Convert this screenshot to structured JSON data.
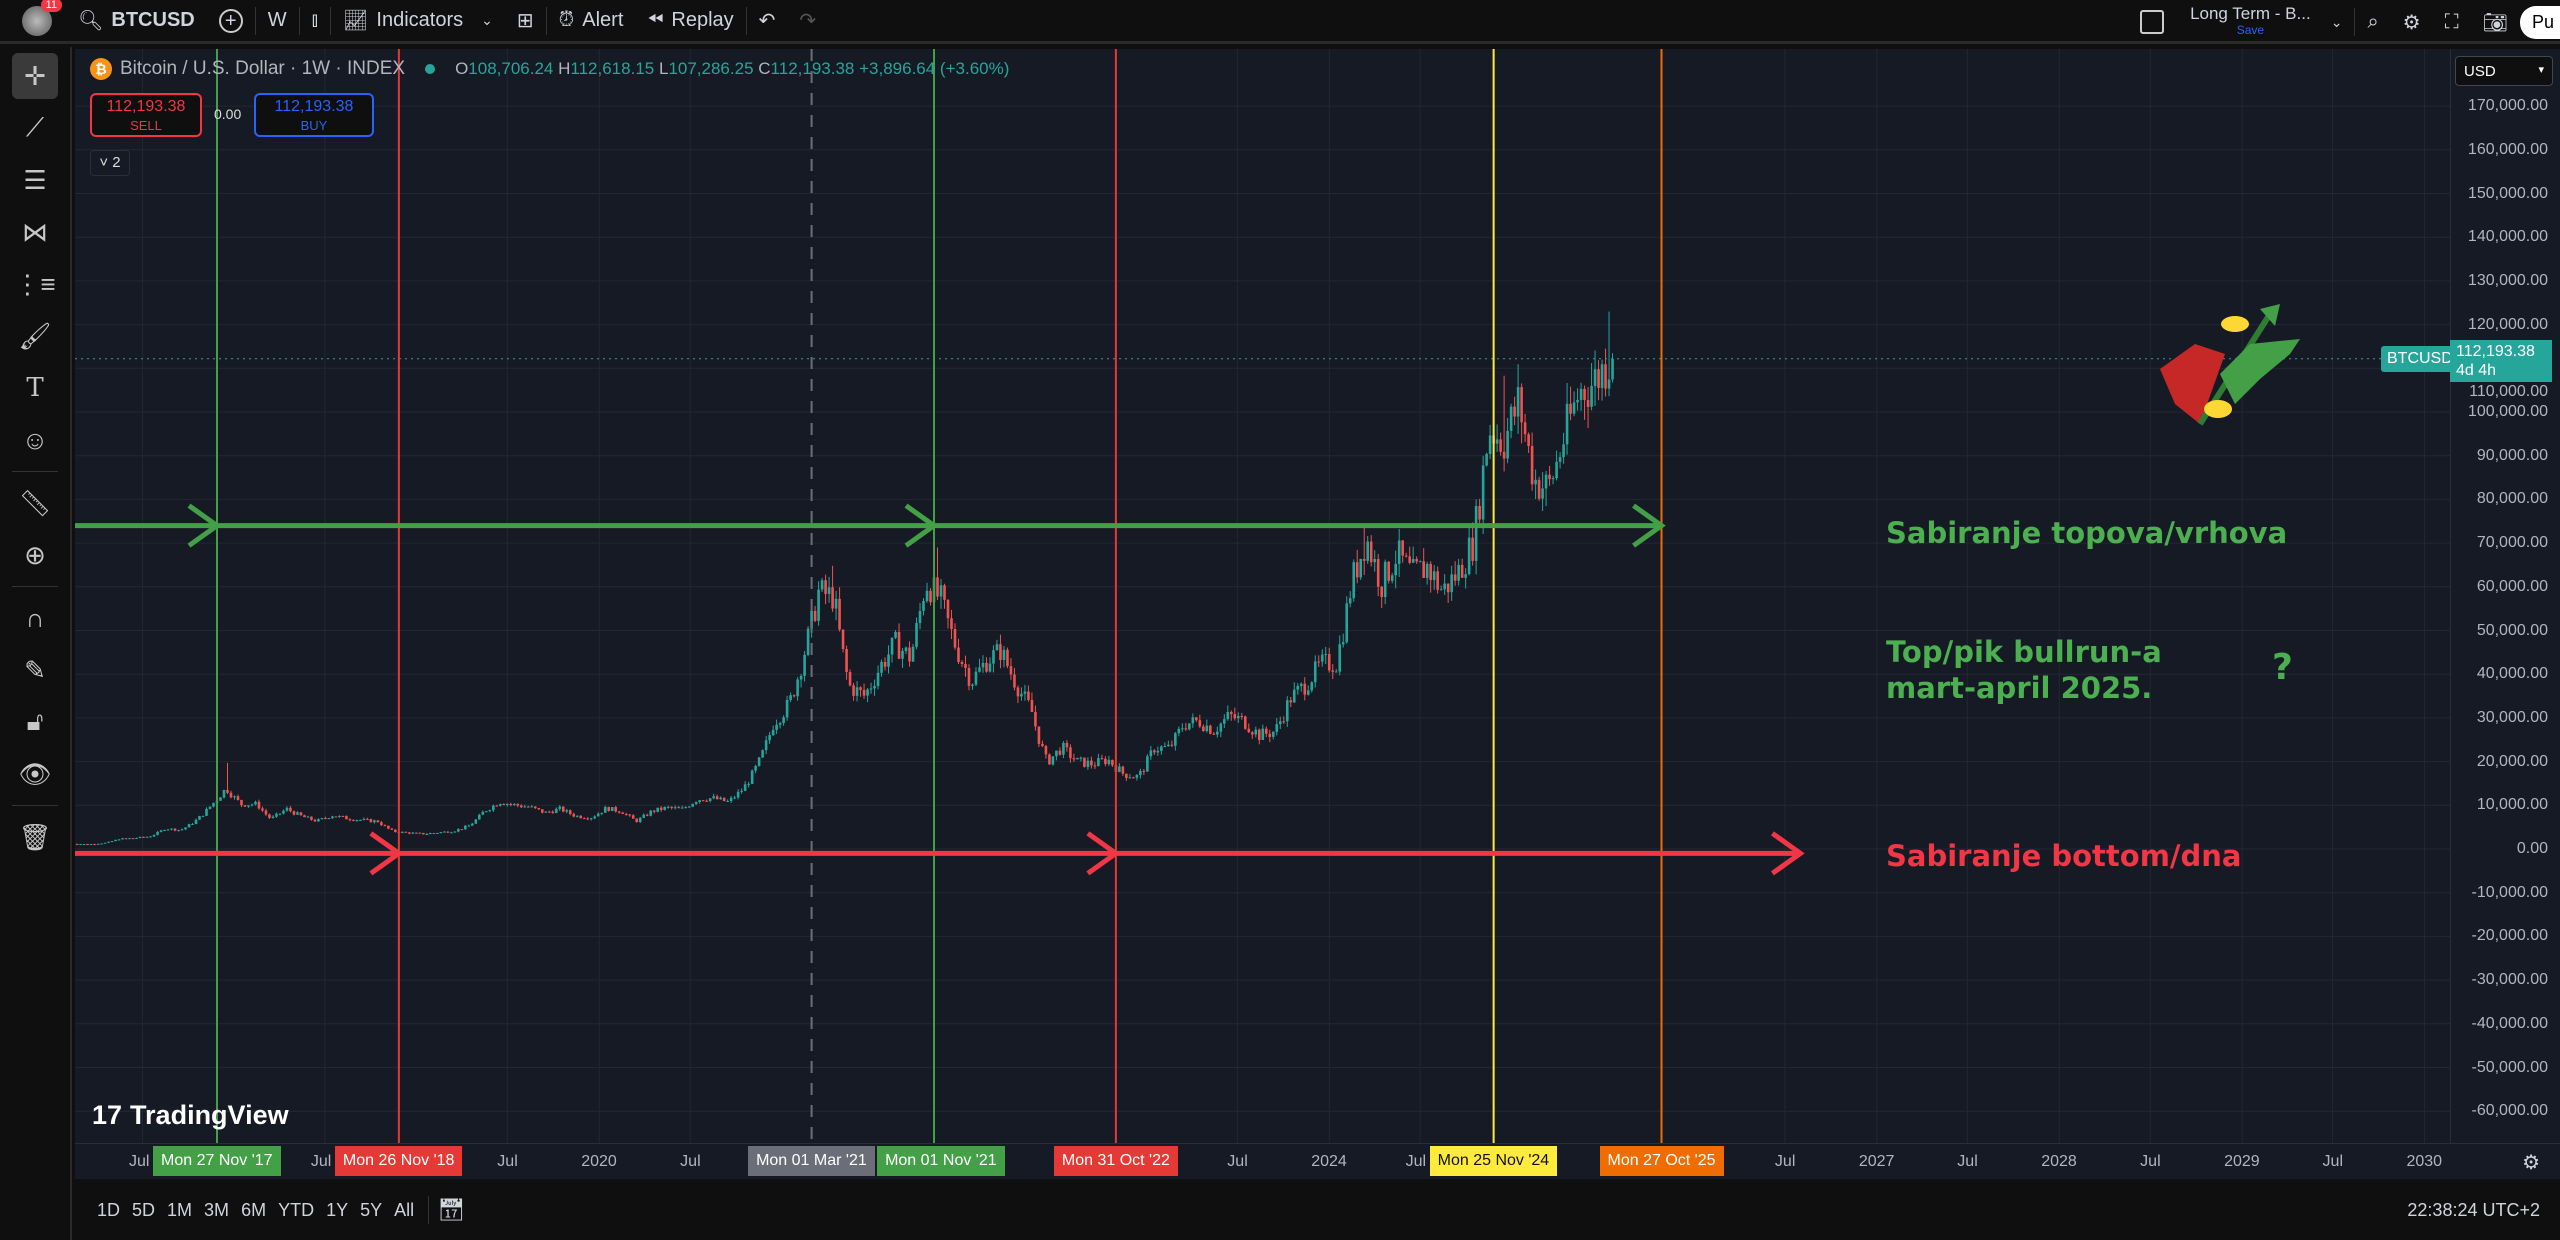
{
  "topbar": {
    "notifications": "11",
    "symbol": "BTCUSD",
    "interval": "W",
    "indicators": "Indicators",
    "alert": "Alert",
    "replay": "Replay",
    "layout_name": "Long Term - B...",
    "layout_save": "Save",
    "publish": "Pu"
  },
  "legend": {
    "title": "Bitcoin / U.S. Dollar · 1W · INDEX",
    "o_label": "O",
    "o": "108,706.24",
    "h_label": "H",
    "h": "112,618.15",
    "l_label": "L",
    "l": "107,286.25",
    "c_label": "C",
    "c": "112,193.38",
    "change": "+3,896.64 (+3.60%)"
  },
  "trade": {
    "sell_price": "112,193.38",
    "sell_label": "SELL",
    "spread": "0.00",
    "buy_price": "112,193.38",
    "buy_label": "BUY",
    "collapse": "˅ 2"
  },
  "price_axis": {
    "currency": "USD",
    "labels": [
      "170,000.00",
      "160,000.00",
      "150,000.00",
      "140,000.00",
      "130,000.00",
      "120,000.00",
      "110,000.00",
      "100,000.00",
      "90,000.00",
      "80,000.00",
      "70,000.00",
      "60,000.00",
      "50,000.00",
      "40,000.00",
      "30,000.00",
      "20,000.00",
      "10,000.00",
      "0.00",
      "-10,000.00",
      "-20,000.00",
      "-30,000.00",
      "-40,000.00",
      "-50,000.00",
      "-60,000.00"
    ],
    "symbol_tag": "BTCUSD",
    "last_price": "112,193.38",
    "countdown": "4d 4h"
  },
  "time_axis": {
    "ticks": [
      {
        "label": "Jul",
        "date": "2017-07-01"
      },
      {
        "label": "Jul",
        "date": "2018-07-01"
      },
      {
        "label": "Jul",
        "date": "2019-07-01"
      },
      {
        "label": "2020",
        "date": "2020-01-01"
      },
      {
        "label": "Jul",
        "date": "2020-07-01"
      },
      {
        "label": "Jul",
        "date": "2023-07-01"
      },
      {
        "label": "2024",
        "date": "2024-01-01"
      },
      {
        "label": "Jul",
        "date": "2024-07-01"
      },
      {
        "label": "Jul",
        "date": "2026-07-01"
      },
      {
        "label": "2027",
        "date": "2027-01-01"
      },
      {
        "label": "Jul",
        "date": "2027-07-01"
      },
      {
        "label": "2028",
        "date": "2028-01-01"
      },
      {
        "label": "Jul",
        "date": "2028-07-01"
      },
      {
        "label": "2029",
        "date": "2029-01-01"
      },
      {
        "label": "Jul",
        "date": "2029-07-01"
      },
      {
        "label": "2030",
        "date": "2030-01-01"
      }
    ],
    "markers": [
      {
        "label": "Mon 27 Nov '17",
        "date": "2017-11-27",
        "color": "#43a047",
        "style": "solid"
      },
      {
        "label": "Mon 26 Nov '18",
        "date": "2018-11-26",
        "color": "#e53935",
        "style": "solid"
      },
      {
        "label": "Mon 01 Mar '21",
        "date": "2021-03-01",
        "color": "#6b6e78",
        "style": "dashed"
      },
      {
        "label": "Mon 01 Nov '21",
        "date": "2021-11-01",
        "color": "#43a047",
        "style": "solid"
      },
      {
        "label": "Mon 31 Oct '22",
        "date": "2022-10-31",
        "color": "#e53935",
        "style": "solid"
      },
      {
        "label": "Mon 25 Nov '24",
        "date": "2024-11-25",
        "color": "#ffeb3b",
        "style": "solid"
      },
      {
        "label": "Mon 27 Oct '25",
        "date": "2025-10-27",
        "color": "#ef6c00",
        "style": "solid"
      }
    ]
  },
  "annotations": {
    "tops": "Sabiranje topova/vrhova",
    "peak_line1": "Top/pik bullrun-a",
    "peak_line2": "mart-april 2025.",
    "question": "?",
    "bottoms": "Sabiranje bottom/dna",
    "tops_color": "#4caf50",
    "bottoms_color": "#f23645",
    "tops_arrow": {
      "price": 74000,
      "from": "2017-02-01",
      "heads": [
        "2017-11-27",
        "2021-11-01",
        "2025-10-27"
      ]
    },
    "bottoms_arrow": {
      "price": -1000,
      "from": "2017-02-01",
      "heads": [
        "2018-11-26",
        "2022-10-31",
        "2026-08-01"
      ]
    }
  },
  "bottombar": {
    "ranges": [
      "1D",
      "5D",
      "1M",
      "3M",
      "6M",
      "YTD",
      "1Y",
      "5Y",
      "All"
    ],
    "clock": "22:38:24 UTC+2"
  },
  "branding": {
    "tradingview": "TradingView"
  },
  "chart_data": {
    "type": "candlestick",
    "interval": "1W",
    "ylim": [
      -65000,
      175000
    ],
    "xlim": [
      "2017-02-01",
      "2030-02-01"
    ],
    "up_color": "#26a69a",
    "down_color": "#ef5350",
    "monthly_close_start": "2017-02",
    "monthly_close": [
      1190,
      1080,
      1350,
      2300,
      2500,
      2870,
      4700,
      4340,
      6470,
      10000,
      13900,
      10200,
      10300,
      6900,
      9200,
      7500,
      6400,
      7700,
      7000,
      6600,
      6300,
      4000,
      3700,
      3450,
      3800,
      4100,
      5300,
      8600,
      10800,
      10100,
      9600,
      8300,
      9200,
      7550,
      7200,
      9350,
      8600,
      6400,
      8650,
      9450,
      9150,
      11350,
      11650,
      10780,
      13800,
      19700,
      29000,
      33100,
      45200,
      58800,
      57700,
      37300,
      35000,
      41500,
      47100,
      43800,
      61300,
      57000,
      46300,
      38500,
      43200,
      45500,
      37700,
      31800,
      19900,
      23300,
      20000,
      19400,
      20500,
      17200,
      16500,
      23100,
      23100,
      28500,
      29300,
      27200,
      30500,
      29200,
      26000,
      27000,
      34500,
      37700,
      42300,
      42600,
      61200,
      71300,
      60700,
      67500,
      62700,
      64600,
      59000,
      63300,
      70200,
      96400,
      93400,
      102400,
      84400,
      82500,
      94200,
      104600,
      107100,
      112193
    ],
    "peaks": [
      {
        "date": "2017-12-17",
        "high": 19700
      },
      {
        "date": "2021-04-14",
        "high": 64800
      },
      {
        "date": "2021-11-10",
        "high": 69000
      },
      {
        "date": "2024-03-14",
        "high": 73800
      },
      {
        "date": "2024-12-17",
        "high": 108300
      },
      {
        "date": "2025-07-14",
        "high": 123000
      }
    ],
    "last_close": 112193.38
  }
}
